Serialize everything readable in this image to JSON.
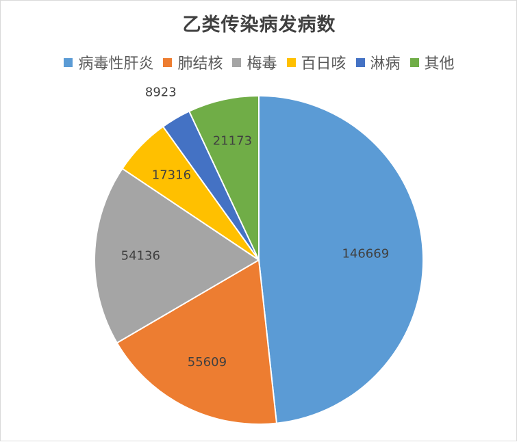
{
  "chart_data": {
    "type": "pie",
    "title": "乙类传染病发病数",
    "categories": [
      "病毒性肝炎",
      "肺结核",
      "梅毒",
      "百日咳",
      "淋病",
      "其他"
    ],
    "values": [
      146669,
      55609,
      54136,
      17316,
      8923,
      21173
    ],
    "colors": [
      "#5b9bd5",
      "#ed7d31",
      "#a5a5a5",
      "#ffc000",
      "#4472c4",
      "#70ad47"
    ],
    "legend_position": "top",
    "data_labels": [
      "146669",
      "55609",
      "54136",
      "17316",
      "8923",
      "21173"
    ]
  }
}
